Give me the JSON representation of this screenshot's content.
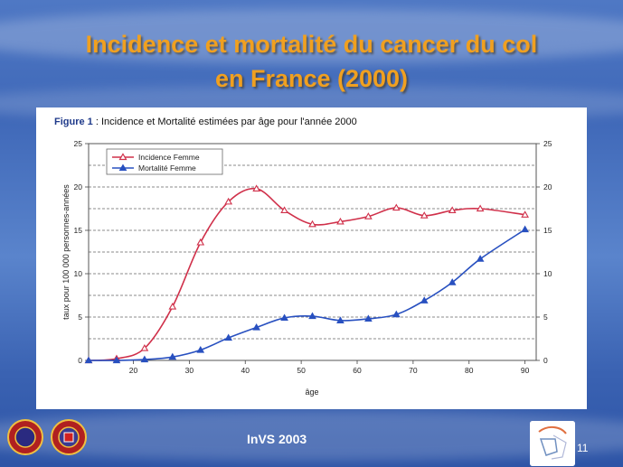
{
  "slide": {
    "title_line1": "Incidence et mortalité du cancer du col",
    "title_line2": "en France (2000)",
    "footer": "InVS 2003",
    "page_number": "11"
  },
  "figure": {
    "label": "Figure 1",
    "caption": " : Incidence et Mortalité estimées par âge pour l'année 2000"
  },
  "colors": {
    "incidence": "#d0304a",
    "mortalite": "#2850c0",
    "title": "#f0a020"
  },
  "chart_data": {
    "type": "line",
    "xlabel": "âge",
    "ylabel": "taux pour 100 000 personnes-années",
    "xlim": [
      12,
      92
    ],
    "ylim": [
      0,
      25
    ],
    "xticks": [
      20,
      30,
      40,
      50,
      60,
      70,
      80,
      90
    ],
    "yticks": [
      0,
      5,
      10,
      15,
      20,
      25
    ],
    "grid": true,
    "legend_position": "top-left",
    "x": [
      12,
      17,
      22,
      27,
      32,
      37,
      42,
      47,
      52,
      57,
      62,
      67,
      72,
      77,
      82,
      90
    ],
    "series": [
      {
        "name": "Incidence Femme",
        "marker": "triangle-open",
        "values": [
          0,
          0.2,
          1.4,
          6.2,
          13.6,
          18.3,
          19.8,
          17.3,
          15.7,
          16.0,
          16.6,
          17.6,
          16.7,
          17.3,
          17.5,
          16.8
        ]
      },
      {
        "name": "Mortalité Femme",
        "marker": "triangle-filled",
        "values": [
          0,
          0,
          0.1,
          0.4,
          1.2,
          2.6,
          3.8,
          4.9,
          5.1,
          4.6,
          4.8,
          5.3,
          6.9,
          9.0,
          11.7,
          15.1
        ]
      }
    ]
  }
}
